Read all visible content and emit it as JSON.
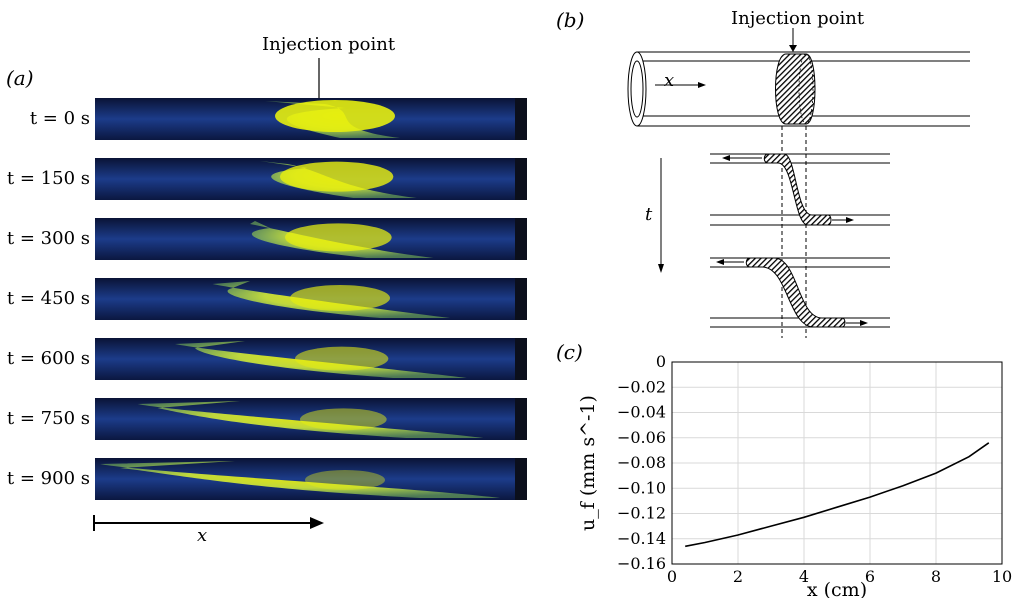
{
  "panel_a": {
    "label": "(a)",
    "injection_label": "Injection point",
    "time_labels": [
      "t = 0 s",
      "t = 150 s",
      "t = 300 s",
      "t = 450 s",
      "t = 600 s",
      "t = 750 s",
      "t = 900 s"
    ],
    "x_axis_label": "x"
  },
  "panel_b": {
    "label": "(b)",
    "injection_label": "Injection point",
    "x_label": "x",
    "t_label": "t"
  },
  "panel_c": {
    "label": "(c)"
  },
  "chart_data": {
    "type": "line",
    "title": "",
    "xlabel": "x (cm)",
    "ylabel": "u_f (mm s^-1)",
    "xlim": [
      0,
      10
    ],
    "ylim": [
      -0.16,
      0
    ],
    "x_ticks": [
      "0",
      "2",
      "4",
      "6",
      "8",
      "10"
    ],
    "y_ticks": [
      "0",
      "-0.02",
      "-0.04",
      "-0.06",
      "-0.08",
      "-0.10",
      "-0.12",
      "-0.14",
      "-0.16"
    ],
    "grid": true,
    "series": [
      {
        "x": [
          0.4,
          1.0,
          2.0,
          3.0,
          4.0,
          5.0,
          6.0,
          7.0,
          8.0,
          9.0,
          9.6
        ],
        "values": [
          -0.146,
          -0.143,
          -0.137,
          -0.13,
          -0.123,
          -0.115,
          -0.107,
          -0.098,
          -0.088,
          -0.075,
          -0.064
        ]
      }
    ]
  }
}
